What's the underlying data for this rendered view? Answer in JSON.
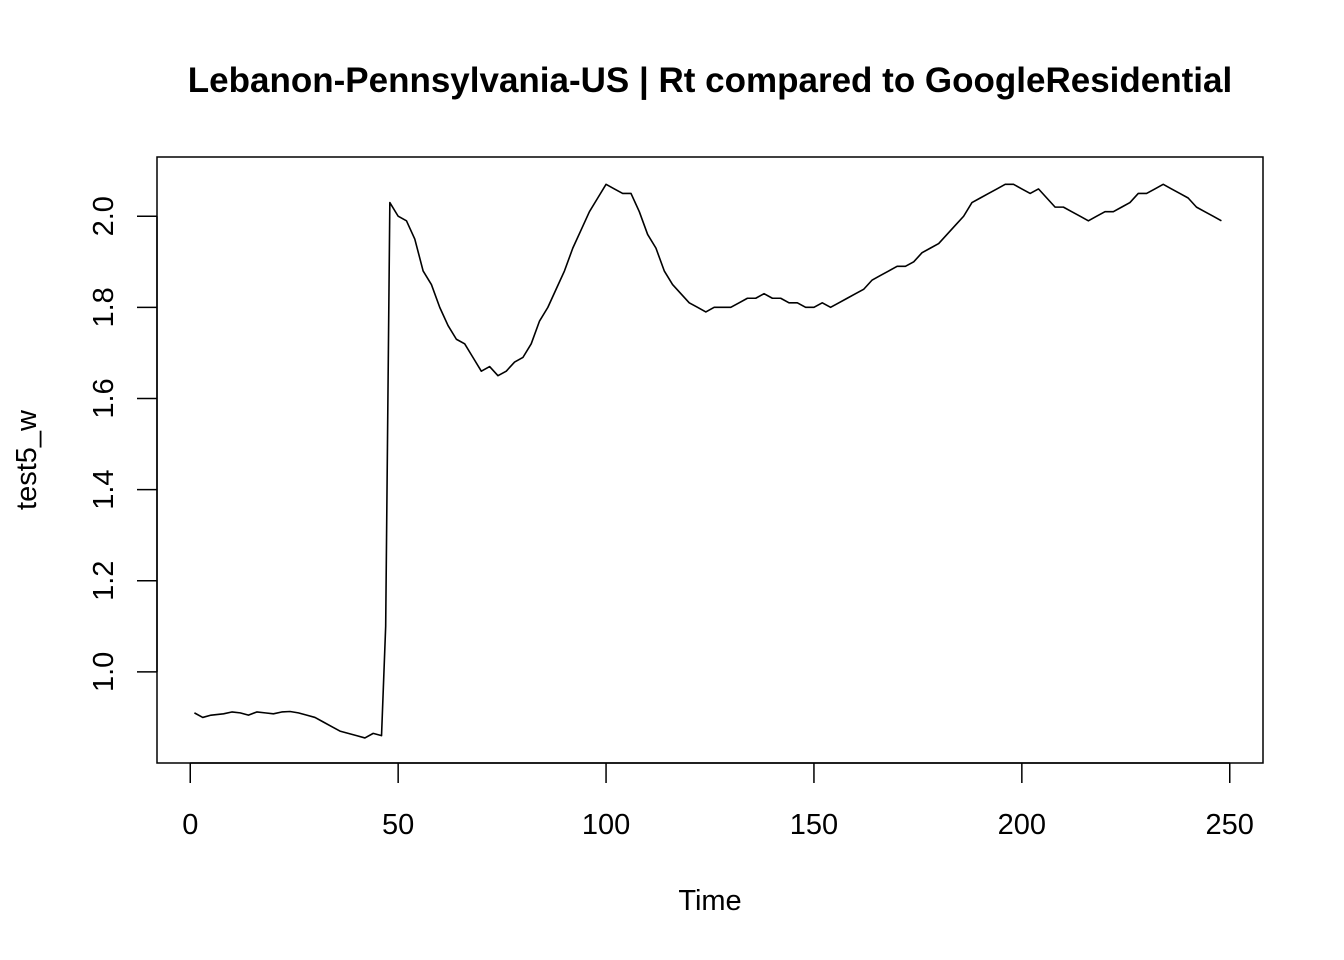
{
  "chart_data": {
    "type": "line",
    "title": "Lebanon-Pennsylvania-US | Rt compared to GoogleResidential",
    "xlabel": "Time",
    "ylabel": "test5_w",
    "xlim": [
      -8,
      258
    ],
    "ylim": [
      0.8,
      2.13
    ],
    "x_ticks": [
      0,
      50,
      100,
      150,
      200,
      250
    ],
    "y_ticks": [
      1.0,
      1.2,
      1.4,
      1.6,
      1.8,
      2.0
    ],
    "x_tick_labels": [
      "0",
      "50",
      "100",
      "150",
      "200",
      "250"
    ],
    "y_tick_labels": [
      "1.0",
      "1.2",
      "1.4",
      "1.6",
      "1.8",
      "2.0"
    ],
    "grid": false,
    "legend": "none",
    "line_color": "#000000",
    "series": [
      {
        "x": [
          1,
          3,
          5,
          8,
          10,
          12,
          14,
          16,
          18,
          20,
          22,
          24,
          26,
          28,
          30,
          32,
          34,
          36,
          38,
          40,
          42,
          44,
          46,
          47,
          48,
          50,
          52,
          54,
          56,
          58,
          60,
          62,
          64,
          66,
          68,
          70,
          72,
          74,
          76,
          78,
          80,
          82,
          84,
          86,
          88,
          90,
          92,
          94,
          96,
          98,
          100,
          102,
          104,
          106,
          108,
          110,
          112,
          114,
          116,
          118,
          120,
          122,
          124,
          126,
          128,
          130,
          132,
          134,
          136,
          138,
          140,
          142,
          144,
          146,
          148,
          150,
          152,
          154,
          156,
          158,
          160,
          162,
          164,
          166,
          168,
          170,
          172,
          174,
          176,
          178,
          180,
          182,
          184,
          186,
          188,
          190,
          192,
          194,
          196,
          198,
          200,
          202,
          204,
          206,
          208,
          210,
          212,
          214,
          216,
          218,
          220,
          222,
          224,
          226,
          228,
          230,
          232,
          234,
          236,
          238,
          240,
          242,
          244,
          246,
          248
        ],
        "values": [
          0.91,
          0.9,
          0.905,
          0.908,
          0.912,
          0.91,
          0.905,
          0.912,
          0.91,
          0.908,
          0.912,
          0.913,
          0.91,
          0.905,
          0.9,
          0.89,
          0.88,
          0.87,
          0.865,
          0.86,
          0.855,
          0.865,
          0.86,
          1.1,
          2.03,
          2.0,
          1.99,
          1.95,
          1.88,
          1.85,
          1.8,
          1.76,
          1.73,
          1.72,
          1.69,
          1.66,
          1.67,
          1.65,
          1.66,
          1.68,
          1.69,
          1.72,
          1.77,
          1.8,
          1.84,
          1.88,
          1.93,
          1.97,
          2.01,
          2.04,
          2.07,
          2.06,
          2.05,
          2.05,
          2.01,
          1.96,
          1.93,
          1.88,
          1.85,
          1.83,
          1.81,
          1.8,
          1.79,
          1.8,
          1.8,
          1.8,
          1.81,
          1.82,
          1.82,
          1.83,
          1.82,
          1.82,
          1.81,
          1.81,
          1.8,
          1.8,
          1.81,
          1.8,
          1.81,
          1.82,
          1.83,
          1.84,
          1.86,
          1.87,
          1.88,
          1.89,
          1.89,
          1.9,
          1.92,
          1.93,
          1.94,
          1.96,
          1.98,
          2.0,
          2.03,
          2.04,
          2.05,
          2.06,
          2.07,
          2.07,
          2.06,
          2.05,
          2.06,
          2.04,
          2.02,
          2.02,
          2.01,
          2.0,
          1.99,
          2.0,
          2.01,
          2.01,
          2.02,
          2.03,
          2.05,
          2.05,
          2.06,
          2.07,
          2.06,
          2.05,
          2.04,
          2.02,
          2.01,
          2.0,
          1.99
        ]
      }
    ]
  }
}
